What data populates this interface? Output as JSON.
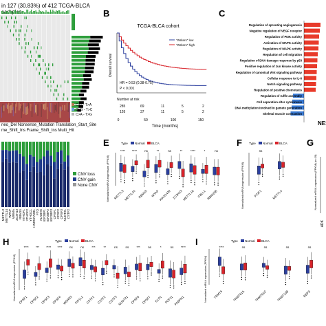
{
  "panel_a": {
    "header": "in 127 (30.83%) of 412 TCGA-BLCA samples",
    "legend_snv": [
      "C>T - T>A",
      "C>G - T>C",
      "C>A - T>G"
    ],
    "footer_lines": [
      "neo_Del   Nonsense_Mutation   Translation_Start_Site",
      "me_Shift_Ins   Frame_Shift_Ins   Multi_Hit"
    ],
    "cnv_legend": [
      "CNV loss",
      "CNV gain",
      "None CNV"
    ],
    "genes": [
      "METTL3",
      "METTL14",
      "WTAP",
      "VIRMA",
      "ZC3H13",
      "RBM15",
      "YTHDF1",
      "YTHDF2",
      "YTHDC1",
      "HNRNPA2B1",
      "FTO",
      "ALKBH5",
      "IGF2BP1",
      "IGF2BP2",
      "IGF2BP3",
      "CPSF1",
      "CPSF2",
      "CPSF3",
      "NUDT21",
      "CSTF2"
    ]
  },
  "panel_b": {
    "label": "B",
    "title": "TCGA-BLCA cohort",
    "legend": [
      "\"Writers\" low",
      "\"Writers\" high"
    ],
    "ylabel": "Overall survival",
    "hr": "HR = 0.53 (0.38-0.75)",
    "p": "P < 0.001",
    "risk_title": "Number at risk",
    "risk_low": [
      "285",
      "69",
      "11",
      "5",
      "2"
    ],
    "risk_high": [
      "126",
      "37",
      "11",
      "5",
      "2"
    ],
    "xticks": [
      "0",
      "50",
      "100",
      "150"
    ],
    "xlabel": "Time (months)"
  },
  "panel_c": {
    "label": "C",
    "terms": [
      "Regulation of sprouting angiogenesis",
      "Negative regulation of VEGF receptor",
      "Regulation of PI3K activity",
      "Activation of MAPK activity",
      "Regulation of MAPK activity",
      "Regulation of cell migration",
      "Regulation of DNA damage response by p53",
      "Positive regulation of Jun kinase activity",
      "Regulation of canonical Wnt signaling pathway",
      "Cellular response to IL-6",
      "Notch signaling pathway",
      "Regulation of positive chemotaxis",
      "Regulation of ruffle assembly",
      "Cell separation after cytokinesis",
      "DNA methylation involved in gamete generation",
      "Skeletal muscle contraction"
    ],
    "values": [
      2.4,
      2.3,
      2.2,
      2.15,
      2.1,
      2.0,
      1.95,
      1.9,
      1.85,
      1.8,
      1.75,
      1.7,
      -1.6,
      -1.7,
      -1.8,
      -1.95
    ],
    "xlabel": "NES",
    "chart_data": {
      "type": "bar",
      "categories_key": "panel_c.terms",
      "values_key": "panel_c.values",
      "xlabel": "NES"
    }
  },
  "panel_e": {
    "label": "E",
    "legend_title": "Type",
    "legend_items": [
      "Normal",
      "BLCA"
    ],
    "ylabel": "Normalized mRNA expression (FPKM)",
    "genes": [
      "METTL3",
      "METTL14",
      "RBM15",
      "WTAP",
      "KIAA1429",
      "ZC3H13",
      "METTL16",
      "CBLL1",
      "RBM15B"
    ],
    "sig": [
      "****",
      "****",
      "ns",
      "**",
      "ns",
      "**",
      "****",
      "*",
      "ns"
    ],
    "normal_y": [
      0.55,
      0.7,
      0.65,
      0.8,
      0.6,
      0.6,
      0.55,
      0.78,
      0.85
    ],
    "blca_y": [
      0.5,
      0.62,
      0.58,
      0.7,
      0.57,
      0.52,
      0.45,
      0.7,
      0.88
    ]
  },
  "panel_f": {
    "label": "F",
    "legend_title": "Type",
    "legend_items": [
      "Normal",
      "BLCA"
    ],
    "ylabel": "Normalized mRNA expression (FPKM)",
    "genes": [
      "PCIF1",
      "METTL4"
    ],
    "sig": [
      "ns",
      "*"
    ]
  },
  "panel_g": {
    "label": "G",
    "ylabel": "Normalized mRNA expression (FPKM) (n=19)",
    "gene": "ADK"
  },
  "panel_h": {
    "label": "H",
    "legend_title": "Type",
    "legend_items": [
      "Normal",
      "BLCA"
    ],
    "ylabel": "Normalized mRNA expression (FPKM)",
    "genes": [
      "CPSF1",
      "CPSF2",
      "CPSF3",
      "CPSF4",
      "WDR33",
      "FIP1L1",
      "CSTF1",
      "CSTF2",
      "CSTF3",
      "NUDT21",
      "CPSF6",
      "CPSF7",
      "CLP1",
      "PCF11",
      "PABPN1"
    ],
    "sig": [
      "****",
      "***",
      "****",
      "****",
      "ns",
      "ns",
      "***",
      "**",
      "ns",
      "ns",
      "***",
      "ns",
      "*",
      "ns",
      "****"
    ]
  },
  "panel_i": {
    "label": "I",
    "legend_title": "Type",
    "legend_items": [
      "Normal",
      "BLCA"
    ],
    "ylabel": "Normalized mRNA expression (FPKM)",
    "genes": [
      "TRMT6",
      "TRMT61A",
      "TRMT61C",
      "TRMT10B",
      "RBPS"
    ],
    "sig": [
      "****",
      "ns",
      "ns",
      "ns",
      "ns"
    ]
  },
  "colors": {
    "normal": "#2b3f9e",
    "blca": "#d8232a",
    "green": "#2e9e3c",
    "blue": "#1f3a8a",
    "tan": "#b07a4b"
  }
}
